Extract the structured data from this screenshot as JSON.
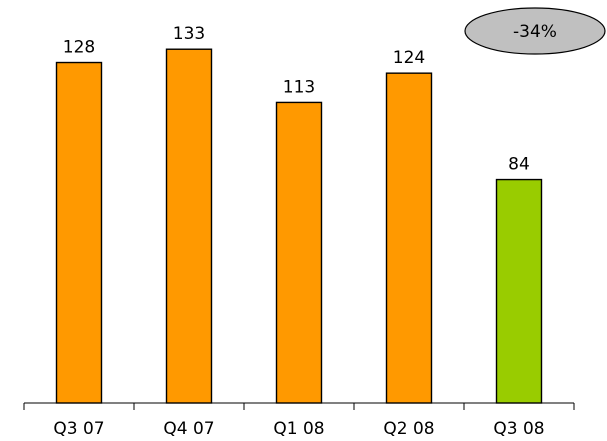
{
  "chart_data": {
    "type": "bar",
    "categories": [
      "Q3 07",
      "Q4 07",
      "Q1 08",
      "Q2 08",
      "Q3 08"
    ],
    "values": [
      128,
      133,
      113,
      124,
      84
    ],
    "data_labels": [
      "128",
      "133",
      "113",
      "124",
      "84"
    ],
    "bar_colors": [
      "#ff9900",
      "#ff9900",
      "#ff9900",
      "#ff9900",
      "#99cc00"
    ],
    "title": "",
    "xlabel": "",
    "ylabel": "",
    "ylim": [
      0,
      140
    ],
    "grid": false,
    "legend": "none",
    "annotation": {
      "text": "-34%",
      "shape": "ellipse",
      "fill": "#c0c0c0",
      "placement": "top-right"
    }
  }
}
